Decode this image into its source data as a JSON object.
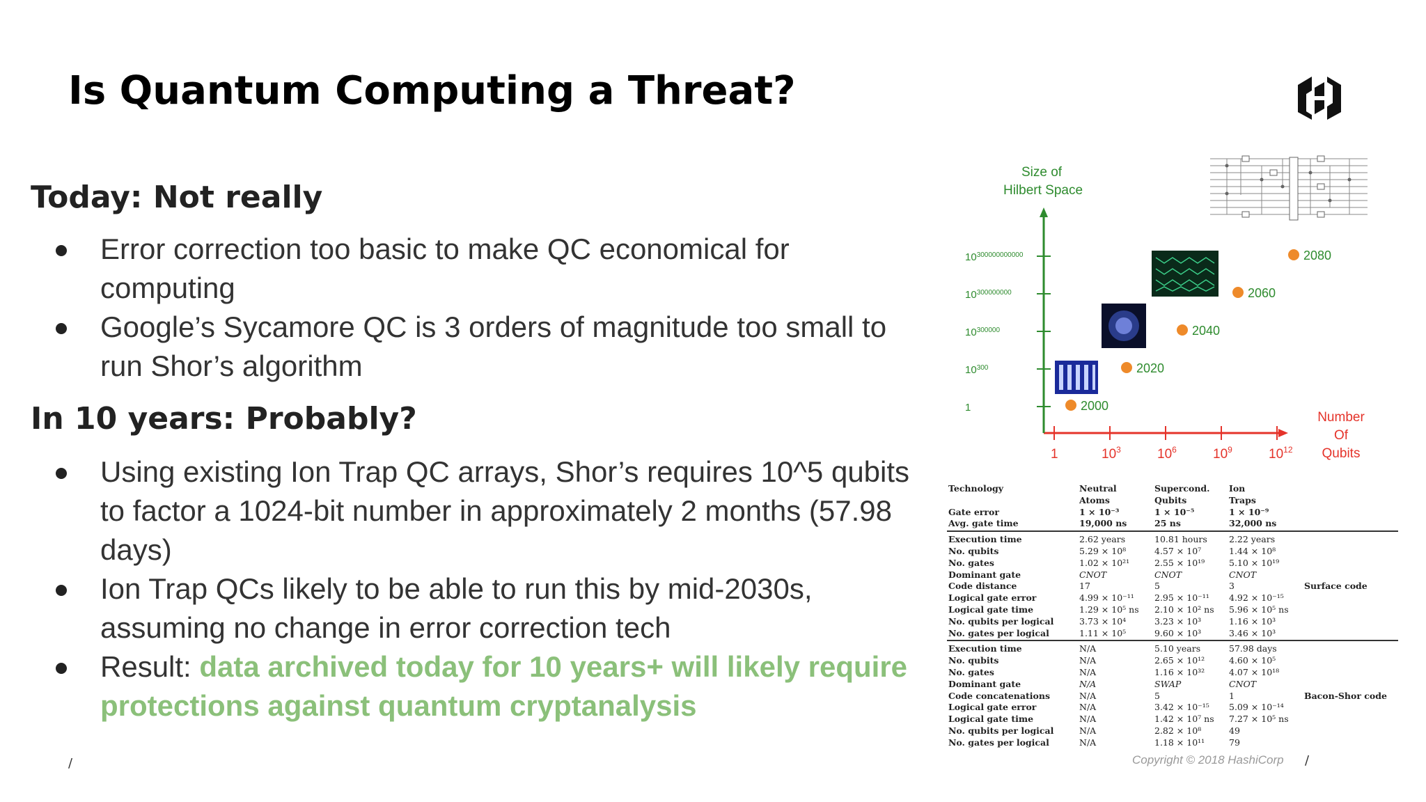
{
  "title": "Is Quantum Computing a Threat?",
  "sections": [
    {
      "heading": "Today: Not really",
      "bullets": [
        {
          "line1": "Error correction too basic to make QC economical for",
          "line2": "computing"
        },
        {
          "line1": "Google’s Sycamore QC is 3 orders of magnitude too small to",
          "line2": "run Shor’s algorithm"
        }
      ]
    },
    {
      "heading": "In 10 years: Probably?",
      "bullets": [
        {
          "line1": "Using existing Ion Trap QC arrays, Shor’s requires 10^5 qubits",
          "line2": "to factor a 1024-bit number in approximately 2 months (57.98",
          "line3": "days)"
        },
        {
          "line1": "Ion Trap QCs likely to be able to run this by mid-2030s,",
          "line2": "assuming no change in error correction tech"
        },
        {
          "prefix": "Result: ",
          "highlight1": "data archived today for 10 years+ will likely require",
          "highlight2": "protections against quantum cryptanalysis"
        }
      ]
    }
  ],
  "colors": {
    "highlight": "#8bc07a",
    "axis": "#2e8b2e",
    "arrow": "#e5332a",
    "point": "#ee8a2a"
  },
  "footer": {
    "copyright": "Copyright © 2018 HashiCorp",
    "slash": "/"
  },
  "logo": {
    "icon": "hashicorp-logo-icon"
  },
  "chart_data": {
    "type": "scatter",
    "ylabel_line1": "Size of",
    "ylabel_line2": "Hilbert Space",
    "xlabel_line1": "Number",
    "xlabel_line2": "Of",
    "xlabel_line3": "Qubits",
    "x_ticks": [
      {
        "base": "1",
        "exp": ""
      },
      {
        "base": "10",
        "exp": "3"
      },
      {
        "base": "10",
        "exp": "6"
      },
      {
        "base": "10",
        "exp": "9"
      },
      {
        "base": "10",
        "exp": "12"
      }
    ],
    "y_ticks": [
      {
        "base": "1",
        "exp": ""
      },
      {
        "base": "10",
        "exp": "300"
      },
      {
        "base": "10",
        "exp": "300000"
      },
      {
        "base": "10",
        "exp": "300000000"
      },
      {
        "base": "10",
        "exp": "300000000000"
      }
    ],
    "points": [
      {
        "label": "2000",
        "x": 0.3,
        "y": 0
      },
      {
        "label": "2020",
        "x": 1.3,
        "y": 1
      },
      {
        "label": "2040",
        "x": 2.3,
        "y": 2
      },
      {
        "label": "2060",
        "x": 3.3,
        "y": 3
      },
      {
        "label": "2080",
        "x": 4.3,
        "y": 4
      }
    ]
  },
  "table": {
    "header": [
      {
        "c0": "Technology",
        "c1": "Neutral",
        "c2": "Supercond.",
        "c3": "Ion"
      },
      {
        "c0": "",
        "c1": "Atoms",
        "c2": "Qubits",
        "c3": "Traps"
      }
    ],
    "params": [
      {
        "c0": "Gate error",
        "c1": "1 × 10⁻³",
        "c2": "1 × 10⁻⁵",
        "c3": "1 × 10⁻⁹"
      },
      {
        "c0": "Avg. gate time",
        "c1": "19,000 ns",
        "c2": "25 ns",
        "c3": "32,000 ns"
      }
    ],
    "surface": [
      {
        "c0": "Execution time",
        "c1": "2.62 years",
        "c2": "10.81 hours",
        "c3": "2.22 years",
        "c4": ""
      },
      {
        "c0": "No. qubits",
        "c1": "5.29 × 10⁸",
        "c2": "4.57 × 10⁷",
        "c3": "1.44 × 10⁸",
        "c4": ""
      },
      {
        "c0": "No. gates",
        "c1": "1.02 × 10²¹",
        "c2": "2.55 × 10¹⁹",
        "c3": "5.10 × 10¹⁹",
        "c4": ""
      },
      {
        "c0": "Dominant gate",
        "c1": "CNOT",
        "c2": "CNOT",
        "c3": "CNOT",
        "c4": ""
      },
      {
        "c0": "Code distance",
        "c1": "17",
        "c2": "5",
        "c3": "3",
        "c4": "Surface code"
      },
      {
        "c0": "Logical gate error",
        "c1": "4.99 × 10⁻¹¹",
        "c2": "2.95 × 10⁻¹¹",
        "c3": "4.92 × 10⁻¹⁵",
        "c4": ""
      },
      {
        "c0": "Logical gate time",
        "c1": "1.29 × 10⁵ ns",
        "c2": "2.10 × 10² ns",
        "c3": "5.96 × 10⁵ ns",
        "c4": ""
      },
      {
        "c0": "No. qubits per logical",
        "c1": "3.73 × 10⁴",
        "c2": "3.23 × 10³",
        "c3": "1.16 × 10³",
        "c4": ""
      },
      {
        "c0": "No. gates per logical",
        "c1": "1.11 × 10⁵",
        "c2": "9.60 × 10³",
        "c3": "3.46 × 10³",
        "c4": ""
      }
    ],
    "bacon": [
      {
        "c0": "Execution time",
        "c1": "N/A",
        "c2": "5.10 years",
        "c3": "57.98 days",
        "c4": ""
      },
      {
        "c0": "No. qubits",
        "c1": "N/A",
        "c2": "2.65 × 10¹²",
        "c3": "4.60 × 10⁵",
        "c4": ""
      },
      {
        "c0": "No. gates",
        "c1": "N/A",
        "c2": "1.16 × 10³²",
        "c3": "4.07 × 10¹⁸",
        "c4": ""
      },
      {
        "c0": "Dominant gate",
        "c1": "N/A",
        "c2": "SWAP",
        "c3": "CNOT",
        "c4": ""
      },
      {
        "c0": "Code concatenations",
        "c1": "N/A",
        "c2": "5",
        "c3": "1",
        "c4": "Bacon-Shor code"
      },
      {
        "c0": "Logical gate error",
        "c1": "N/A",
        "c2": "3.42 × 10⁻¹⁵",
        "c3": "5.09 × 10⁻¹⁴",
        "c4": ""
      },
      {
        "c0": "Logical gate time",
        "c1": "N/A",
        "c2": "1.42 × 10⁷ ns",
        "c3": "7.27 × 10⁵ ns",
        "c4": ""
      },
      {
        "c0": "No. qubits per logical",
        "c1": "N/A",
        "c2": "2.82 × 10⁸",
        "c3": "49",
        "c4": ""
      },
      {
        "c0": "No. gates per logical",
        "c1": "N/A",
        "c2": "1.18 × 10¹¹",
        "c3": "79",
        "c4": ""
      }
    ]
  }
}
